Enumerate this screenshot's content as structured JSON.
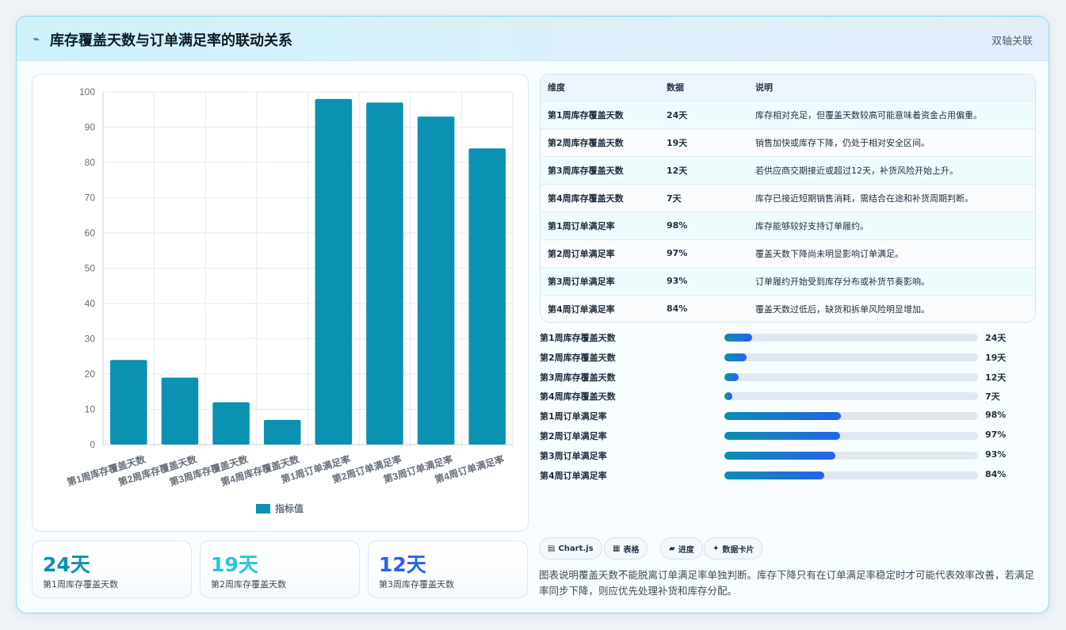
{
  "header": {
    "icon": "lightning-icon",
    "title": "库存覆盖天数与订单满足率的联动关系",
    "tag": "双轴关联"
  },
  "chart_data": {
    "type": "bar",
    "categories": [
      "第1周库存覆盖天数",
      "第2周库存覆盖天数",
      "第3周库存覆盖天数",
      "第4周库存覆盖天数",
      "第1周订单满足率",
      "第2周订单满足率",
      "第3周订单满足率",
      "第4周订单满足率"
    ],
    "series": [
      {
        "name": "指标值",
        "values": [
          24,
          19,
          12,
          7,
          98,
          97,
          93,
          84
        ]
      }
    ],
    "ylim": [
      0,
      100
    ],
    "yticks": [
      0,
      10,
      20,
      30,
      40,
      50,
      60,
      70,
      80,
      90,
      100
    ],
    "grid": true,
    "legend": "bottom",
    "bar_color": "#0b91b1"
  },
  "kpis": [
    {
      "value": "24天",
      "label": "第1周库存覆盖天数",
      "color": "#0b91b1"
    },
    {
      "value": "19天",
      "label": "第2周库存覆盖天数",
      "color": "#22c7e0"
    },
    {
      "value": "12天",
      "label": "第3周库存覆盖天数",
      "color": "#2563eb"
    }
  ],
  "table": {
    "headers": [
      "维度",
      "数据",
      "说明"
    ],
    "rows": [
      [
        "第1周库存覆盖天数",
        "24天",
        "库存相对充足，但覆盖天数较高可能意味着资金占用偏重。"
      ],
      [
        "第2周库存覆盖天数",
        "19天",
        "销售加快或库存下降，仍处于相对安全区间。"
      ],
      [
        "第3周库存覆盖天数",
        "12天",
        "若供应商交期接近或超过12天，补货风险开始上升。"
      ],
      [
        "第4周库存覆盖天数",
        "7天",
        "库存已接近短期销售消耗，需结合在途和补货周期判断。"
      ],
      [
        "第1周订单满足率",
        "98%",
        "库存能够较好支持订单履约。"
      ],
      [
        "第2周订单满足率",
        "97%",
        "覆盖天数下降尚未明显影响订单满足。"
      ],
      [
        "第3周订单满足率",
        "93%",
        "订单履约开始受到库存分布或补货节奏影响。"
      ],
      [
        "第4周订单满足率",
        "84%",
        "覆盖天数过低后，缺货和拆单风险明显增加。"
      ]
    ]
  },
  "progress": [
    {
      "label": "第1周库存覆盖天数",
      "value": "24天",
      "fraction": 0.11
    },
    {
      "label": "第2周库存覆盖天数",
      "value": "19天",
      "fraction": 0.087
    },
    {
      "label": "第3周库存覆盖天数",
      "value": "12天",
      "fraction": 0.055
    },
    {
      "label": "第4周库存覆盖天数",
      "value": "7天",
      "fraction": 0.032
    },
    {
      "label": "第1周订单满足率",
      "value": "98%",
      "fraction": 0.46
    },
    {
      "label": "第2周订单满足率",
      "value": "97%",
      "fraction": 0.455
    },
    {
      "label": "第3周订单满足率",
      "value": "93%",
      "fraction": 0.436
    },
    {
      "label": "第4周订单满足率",
      "value": "84%",
      "fraction": 0.394
    }
  ],
  "chips": [
    {
      "icon": "chart-icon",
      "glyph": "▤",
      "label": "Chart.js"
    },
    {
      "icon": "table-icon",
      "glyph": "▦",
      "label": "表格"
    },
    {
      "icon": "progress-icon",
      "glyph": "▰",
      "label": "进度"
    },
    {
      "icon": "sparkle-icon",
      "glyph": "✦",
      "label": "数据卡片"
    }
  ],
  "description": "图表说明覆盖天数不能脱离订单满足率单独判断。库存下降只有在订单满足率稳定时才可能代表效率改善，若满足率同步下降，则应优先处理补货和库存分配。"
}
